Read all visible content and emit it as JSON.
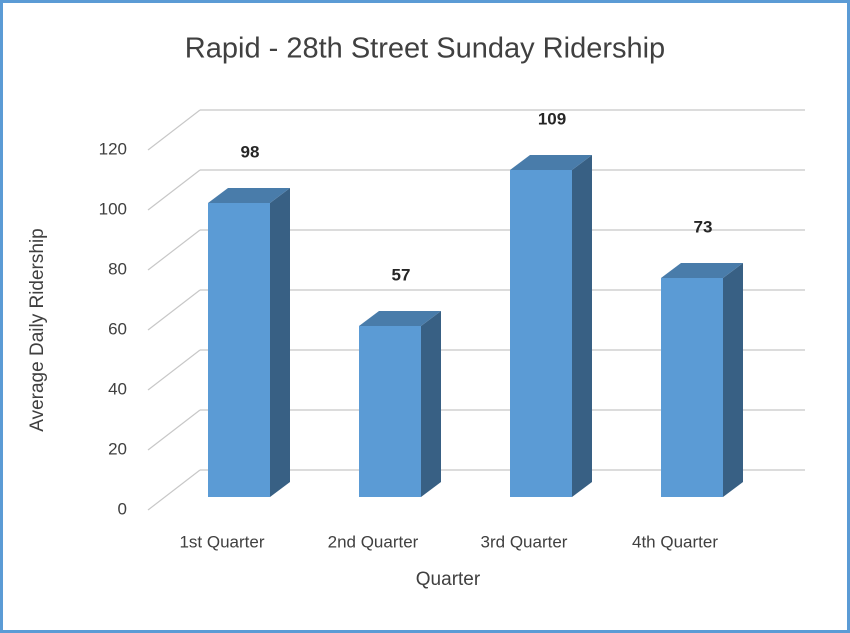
{
  "chart_data": {
    "type": "bar",
    "title": "Rapid - 28th Street Sunday Ridership",
    "x_label": "Quarter",
    "y_label": "Average Daily Ridership",
    "categories": [
      "1st Quarter",
      "2nd Quarter",
      "3rd Quarter",
      "4th Quarter"
    ],
    "values": [
      98,
      57,
      109,
      73
    ],
    "color": "#5b9bd5",
    "ylim": [
      0,
      120
    ],
    "yticks": [
      0,
      20,
      40,
      60,
      80,
      100,
      120
    ],
    "grid": true
  }
}
